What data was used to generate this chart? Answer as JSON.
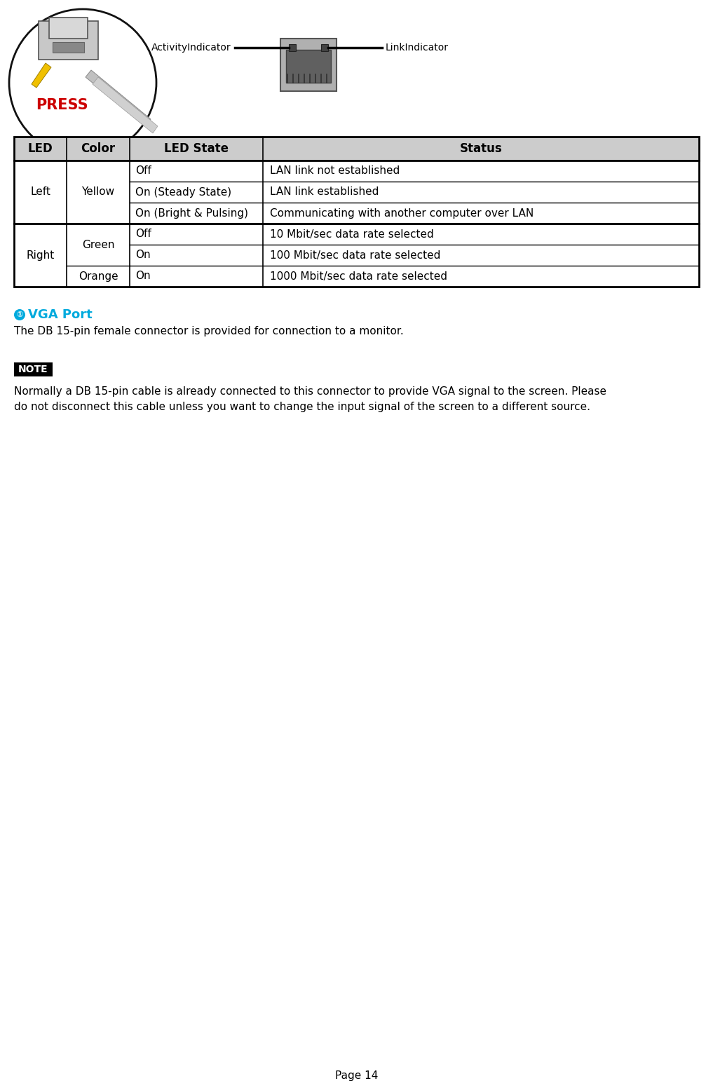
{
  "page_number": "Page 14",
  "bg_color": "#ffffff",
  "table_header_bg": "#cccccc",
  "table_border_color": "#000000",
  "table_header": [
    "LED",
    "Color",
    "LED State",
    "Status"
  ],
  "vga_heading": "① VGA Port",
  "vga_heading_color": "#00aadd",
  "vga_text": "The DB 15-pin female connector is provided for connection to a monitor.",
  "note_label": "NOTE",
  "note_bg": "#000000",
  "note_text_color": "#ffffff",
  "note_line1": "Normally a DB 15-pin cable is already connected to this connector to provide VGA signal to the screen. Please",
  "note_line2": "do not disconnect this cable unless you want to change the input signal of the screen to a different source.",
  "activity_indicator_label": "ActivityIndicator",
  "link_indicator_label": "LinkIndicator",
  "press_text": "PRESS",
  "press_color": "#cc0000",
  "fig_width": 10.17,
  "fig_height": 15.52,
  "dpi": 100
}
